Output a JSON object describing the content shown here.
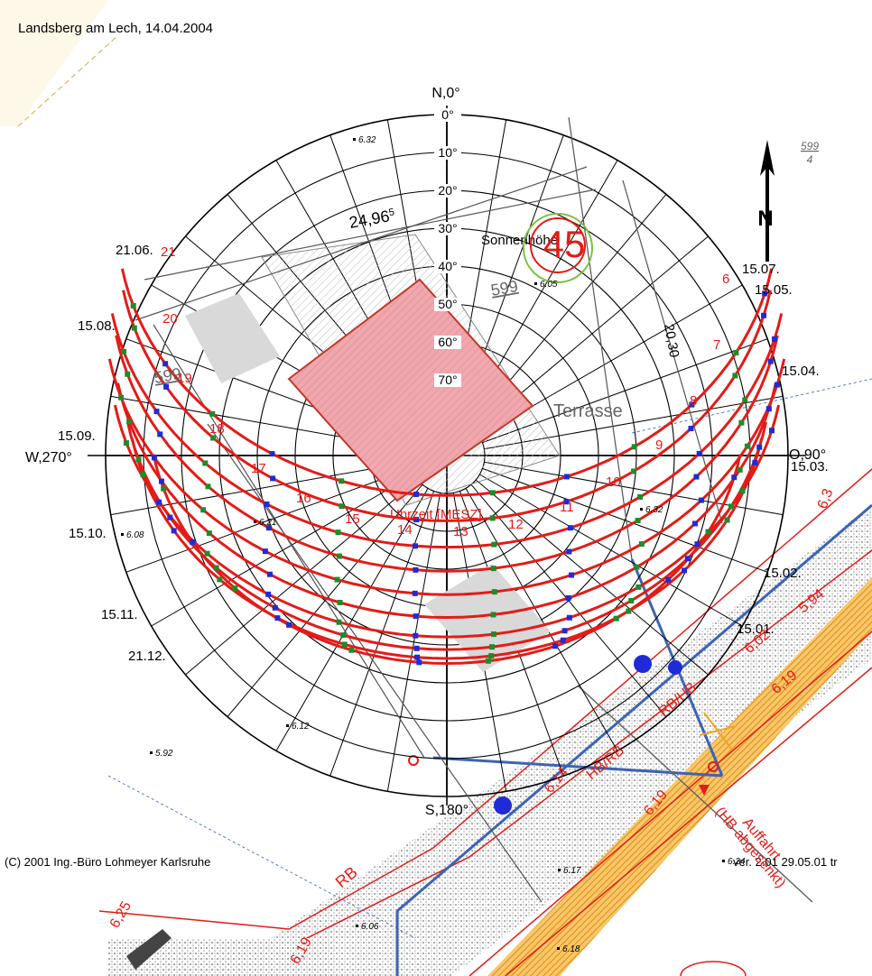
{
  "header": {
    "place_date": "Landsberg am Lech, 14.04.2004"
  },
  "footer": {
    "copyright": "(C) 2001 Ing.-Büro Lohmeyer Karlsruhe",
    "version": "ver. 2.01 29.05.01 tr"
  },
  "compass": {
    "north": "N,0°",
    "south": "S,180°",
    "west": "W,270°",
    "east": "O,90°",
    "north_arrow": "N"
  },
  "altitude_ticks": [
    "0°",
    "10°",
    "20°",
    "30°",
    "40°",
    "50°",
    "60°",
    "70°"
  ],
  "labels": {
    "sonnenhoehe": "Sonnenhöhe",
    "uhrzeit": "Uhrzeit [MESZ]",
    "terrasse": "Terrasse",
    "distance": "24,96",
    "distance_sup": "5",
    "dist_right": "20,30",
    "big_number": "45",
    "parcel_top": "599",
    "parcel_top_den": "4",
    "parcel_mid": "599",
    "parcel_left": "599",
    "auffahrt": "Auffahrt",
    "auffahrt2": "(HB abgesenkt)",
    "rb": "RB",
    "hb_rb": "HB/RB",
    "rb_hb": "RB/HB"
  },
  "dates_left": [
    "21.06.",
    "15.08.",
    "15.09.",
    "15.10.",
    "15.11.",
    "21.12."
  ],
  "dates_right": [
    "15.07.",
    "15.05.",
    "15.04.",
    "15.03.",
    "15.02.",
    "15.01."
  ],
  "hours": [
    "21",
    "20",
    "19",
    "18",
    "17",
    "16",
    "15",
    "14",
    "13",
    "12",
    "11",
    "10",
    "9",
    "8",
    "7",
    "6"
  ],
  "spot_heights": [
    "6.32",
    "6.08",
    "5.92",
    "6.12",
    "6.17",
    "6.18",
    "6.24",
    "6.32",
    "6.05",
    "6.06",
    "6.21"
  ],
  "road_elevations": [
    "6,25",
    "6,19",
    "6,14",
    "6,19",
    "6,19",
    "6,02",
    "5,94",
    "6,3"
  ],
  "colors": {
    "sunpath": "#e41b17",
    "hour_green": "#1e8c2a",
    "hour_blue": "#1f2bd6",
    "pipe": "#3c64b4",
    "hatch_orange": "#f2a51e",
    "house_fill": "#f0a7ad"
  }
}
